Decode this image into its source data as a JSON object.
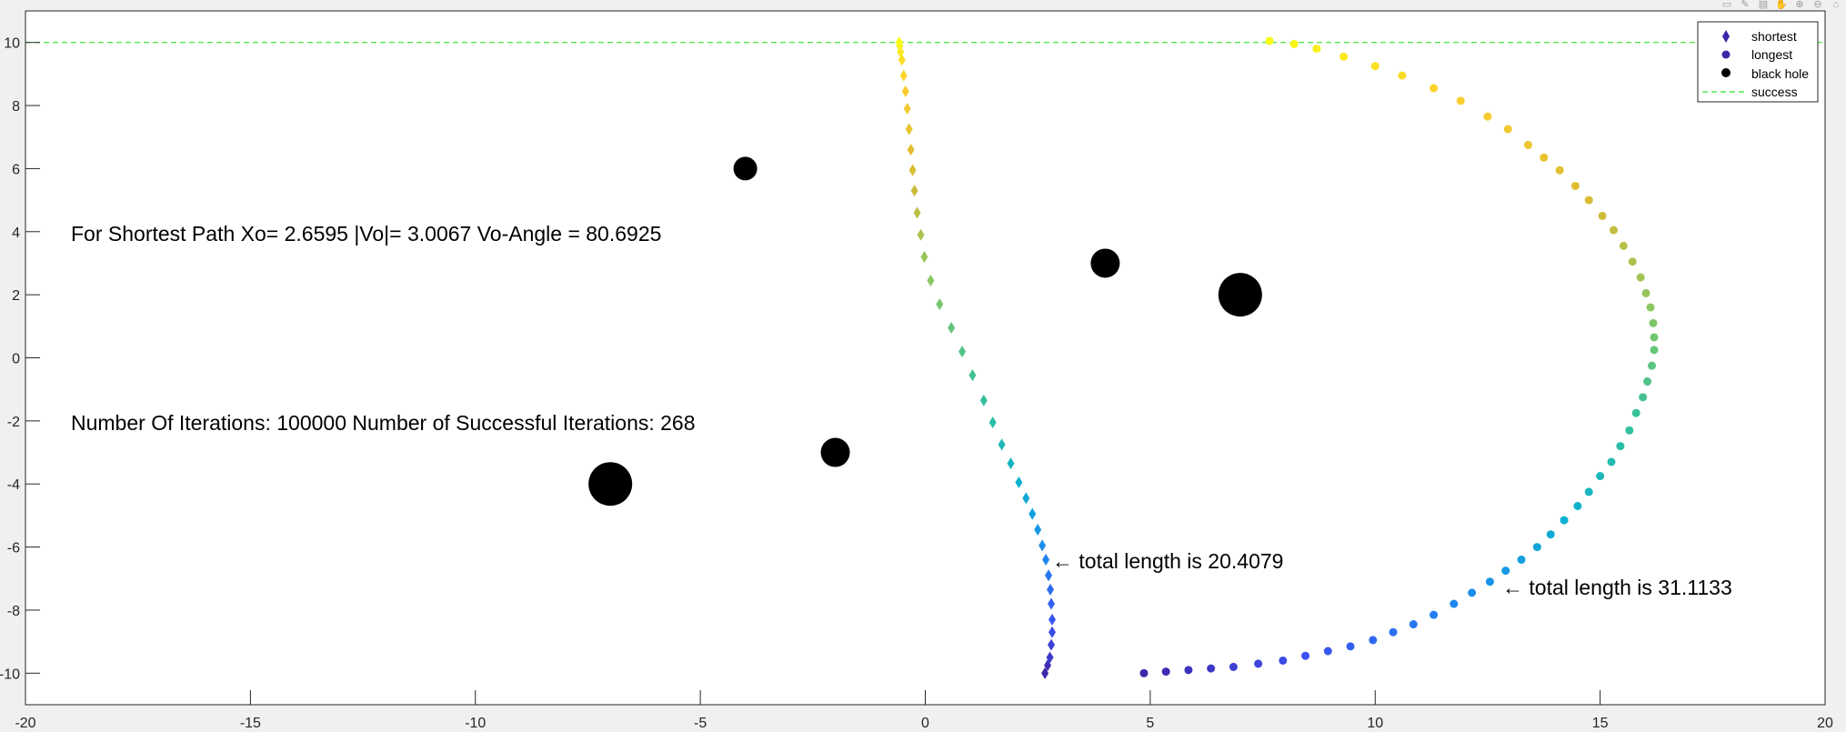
{
  "toolbar": {
    "icons": [
      "export-icon",
      "brush-icon",
      "datatip-icon",
      "pan-icon",
      "zoom-in-icon",
      "zoom-out-icon",
      "home-icon"
    ]
  },
  "annotations": {
    "shortest_path_info": "For Shortest Path  Xo= 2.6595 |Vo|= 3.0067 Vo-Angle =  80.6925",
    "iterations_info": "Number Of Iterations: 100000  Number of Successful Iterations: 268",
    "shortest_length": "← total length is 20.4079",
    "longest_length": "← total length is 31.1133"
  },
  "legend": {
    "placement": "top-right",
    "shortest": "shortest",
    "longest": "longest",
    "black_hole": "black hole",
    "success": "success"
  },
  "chart_data": {
    "type": "scatter",
    "title": "",
    "xlabel": "",
    "ylabel": "",
    "xlim": [
      -20,
      20
    ],
    "ylim": [
      -11,
      11
    ],
    "x_ticks": [
      -20,
      -15,
      -10,
      -5,
      0,
      5,
      10,
      15,
      20
    ],
    "y_ticks": [
      -10,
      -8,
      -6,
      -4,
      -2,
      0,
      2,
      4,
      6,
      8,
      10
    ],
    "grid": false,
    "colormap": [
      "#3e26a8",
      "#3b51f1",
      "#1e87f0",
      "#0bb1d1",
      "#38c197",
      "#8ac861",
      "#d9ba32",
      "#fcce2e",
      "#f9fb15"
    ],
    "series": [
      {
        "name": "shortest",
        "marker": "diamond",
        "points": [
          [
            2.66,
            -10.0
          ],
          [
            2.72,
            -9.75
          ],
          [
            2.77,
            -9.5
          ],
          [
            2.8,
            -9.1
          ],
          [
            2.82,
            -8.7
          ],
          [
            2.82,
            -8.3
          ],
          [
            2.8,
            -7.8
          ],
          [
            2.78,
            -7.35
          ],
          [
            2.74,
            -6.9
          ],
          [
            2.68,
            -6.4
          ],
          [
            2.6,
            -5.95
          ],
          [
            2.5,
            -5.45
          ],
          [
            2.38,
            -4.95
          ],
          [
            2.24,
            -4.45
          ],
          [
            2.08,
            -3.95
          ],
          [
            1.9,
            -3.35
          ],
          [
            1.7,
            -2.75
          ],
          [
            1.5,
            -2.05
          ],
          [
            1.3,
            -1.35
          ],
          [
            1.05,
            -0.55
          ],
          [
            0.82,
            0.2
          ],
          [
            0.58,
            0.95
          ],
          [
            0.32,
            1.7
          ],
          [
            0.12,
            2.45
          ],
          [
            -0.02,
            3.2
          ],
          [
            -0.1,
            3.9
          ],
          [
            -0.18,
            4.6
          ],
          [
            -0.24,
            5.3
          ],
          [
            -0.28,
            5.95
          ],
          [
            -0.32,
            6.6
          ],
          [
            -0.36,
            7.25
          ],
          [
            -0.4,
            7.9
          ],
          [
            -0.44,
            8.45
          ],
          [
            -0.48,
            8.95
          ],
          [
            -0.52,
            9.45
          ],
          [
            -0.55,
            9.7
          ],
          [
            -0.57,
            9.9
          ],
          [
            -0.58,
            10.0
          ]
        ]
      },
      {
        "name": "longest",
        "marker": "circle",
        "points": [
          [
            4.86,
            -10.0
          ],
          [
            5.35,
            -9.95
          ],
          [
            5.85,
            -9.9
          ],
          [
            6.35,
            -9.85
          ],
          [
            6.85,
            -9.8
          ],
          [
            7.4,
            -9.7
          ],
          [
            7.95,
            -9.6
          ],
          [
            8.45,
            -9.45
          ],
          [
            8.95,
            -9.3
          ],
          [
            9.45,
            -9.15
          ],
          [
            9.95,
            -8.95
          ],
          [
            10.4,
            -8.7
          ],
          [
            10.85,
            -8.45
          ],
          [
            11.3,
            -8.15
          ],
          [
            11.75,
            -7.8
          ],
          [
            12.15,
            -7.45
          ],
          [
            12.55,
            -7.1
          ],
          [
            12.9,
            -6.75
          ],
          [
            13.25,
            -6.4
          ],
          [
            13.6,
            -6.0
          ],
          [
            13.9,
            -5.6
          ],
          [
            14.2,
            -5.15
          ],
          [
            14.5,
            -4.7
          ],
          [
            14.75,
            -4.25
          ],
          [
            15.0,
            -3.75
          ],
          [
            15.25,
            -3.3
          ],
          [
            15.45,
            -2.8
          ],
          [
            15.65,
            -2.3
          ],
          [
            15.8,
            -1.75
          ],
          [
            15.95,
            -1.25
          ],
          [
            16.05,
            -0.75
          ],
          [
            16.15,
            -0.25
          ],
          [
            16.2,
            0.25
          ],
          [
            16.2,
            0.65
          ],
          [
            16.18,
            1.1
          ],
          [
            16.12,
            1.6
          ],
          [
            16.02,
            2.05
          ],
          [
            15.9,
            2.55
          ],
          [
            15.72,
            3.05
          ],
          [
            15.52,
            3.55
          ],
          [
            15.3,
            4.05
          ],
          [
            15.05,
            4.5
          ],
          [
            14.75,
            5.0
          ],
          [
            14.45,
            5.45
          ],
          [
            14.1,
            5.95
          ],
          [
            13.75,
            6.35
          ],
          [
            13.4,
            6.75
          ],
          [
            12.95,
            7.25
          ],
          [
            12.5,
            7.65
          ],
          [
            11.9,
            8.15
          ],
          [
            11.3,
            8.55
          ],
          [
            10.6,
            8.95
          ],
          [
            10.0,
            9.25
          ],
          [
            9.3,
            9.55
          ],
          [
            8.7,
            9.8
          ],
          [
            8.2,
            9.95
          ],
          [
            7.65,
            10.05
          ]
        ]
      },
      {
        "name": "black hole",
        "marker": "filled-circle",
        "points": [
          {
            "x": -4,
            "y": 6,
            "size": "small"
          },
          {
            "x": 4,
            "y": 3,
            "size": "medium"
          },
          {
            "x": 7,
            "y": 2,
            "size": "large"
          },
          {
            "x": -2,
            "y": -3,
            "size": "medium"
          },
          {
            "x": -7,
            "y": -4,
            "size": "large"
          }
        ]
      },
      {
        "name": "success",
        "marker": "dashed-line",
        "y": 10,
        "color": "#2ee62e"
      }
    ]
  }
}
